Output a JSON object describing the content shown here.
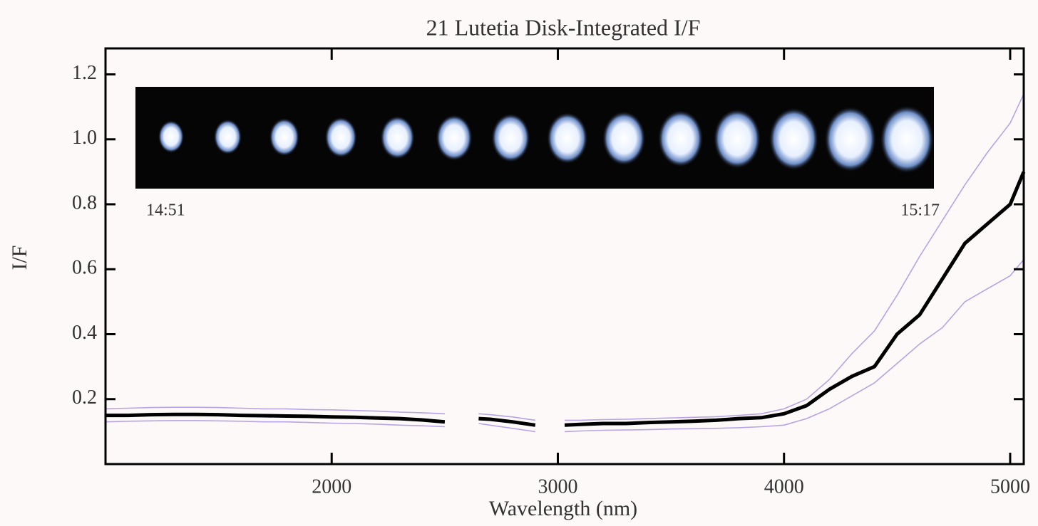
{
  "chart_data": {
    "type": "line",
    "title": "21 Lutetia Disk-Integrated I/F",
    "xlabel": "Wavelength (nm)",
    "ylabel": "I/F",
    "annotations": [
      "14:51",
      "15:17"
    ],
    "x": [
      1000,
      1100,
      1200,
      1300,
      1400,
      1500,
      1600,
      1700,
      1800,
      1900,
      2000,
      2100,
      2200,
      2300,
      2400,
      2500,
      2580,
      2650,
      2700,
      2800,
      2900,
      2970,
      3030,
      3100,
      3200,
      3300,
      3400,
      3500,
      3600,
      3700,
      3800,
      3900,
      4000,
      4100,
      4200,
      4300,
      4400,
      4500,
      4600,
      4700,
      4800,
      4900,
      5000,
      5060
    ],
    "series": [
      {
        "color": "#b7a3e6",
        "values": [
          0.17,
          0.172,
          0.174,
          0.175,
          0.175,
          0.174,
          0.172,
          0.17,
          0.17,
          0.168,
          0.167,
          0.165,
          0.163,
          0.16,
          0.158,
          0.155,
          null,
          0.155,
          0.152,
          0.145,
          0.135,
          null,
          0.135,
          0.135,
          0.137,
          0.138,
          0.14,
          0.142,
          0.144,
          0.146,
          0.15,
          0.155,
          0.17,
          0.2,
          0.26,
          0.34,
          0.41,
          0.52,
          0.64,
          0.75,
          0.86,
          0.96,
          1.05,
          1.14
        ]
      },
      {
        "color": "#b7a3e6",
        "values": [
          0.13,
          0.132,
          0.133,
          0.134,
          0.134,
          0.133,
          0.132,
          0.13,
          0.13,
          0.128,
          0.126,
          0.125,
          0.123,
          0.12,
          0.118,
          0.115,
          null,
          0.125,
          0.12,
          0.11,
          0.1,
          null,
          0.1,
          0.102,
          0.104,
          0.105,
          0.106,
          0.108,
          0.109,
          0.11,
          0.112,
          0.115,
          0.12,
          0.14,
          0.17,
          0.21,
          0.25,
          0.31,
          0.37,
          0.42,
          0.5,
          0.54,
          0.58,
          0.63
        ]
      },
      {
        "color": "#000000",
        "values": [
          0.15,
          0.15,
          0.152,
          0.153,
          0.153,
          0.152,
          0.15,
          0.149,
          0.148,
          0.147,
          0.145,
          0.144,
          0.142,
          0.14,
          0.136,
          0.13,
          null,
          0.14,
          0.138,
          0.13,
          0.12,
          null,
          0.12,
          0.122,
          0.125,
          0.125,
          0.128,
          0.13,
          0.132,
          0.135,
          0.14,
          0.143,
          0.155,
          0.18,
          0.23,
          0.27,
          0.3,
          0.4,
          0.46,
          0.57,
          0.68,
          0.74,
          0.8,
          0.9
        ]
      }
    ],
    "xlim": [
      1000,
      5060
    ],
    "ylim": [
      0,
      1.28
    ],
    "xticks": [
      2000,
      3000,
      4000,
      5000
    ],
    "yticks": [
      0.2,
      0.4,
      0.6,
      0.8,
      {
        "value": 1,
        "label": "1.0"
      },
      1.2
    ]
  }
}
